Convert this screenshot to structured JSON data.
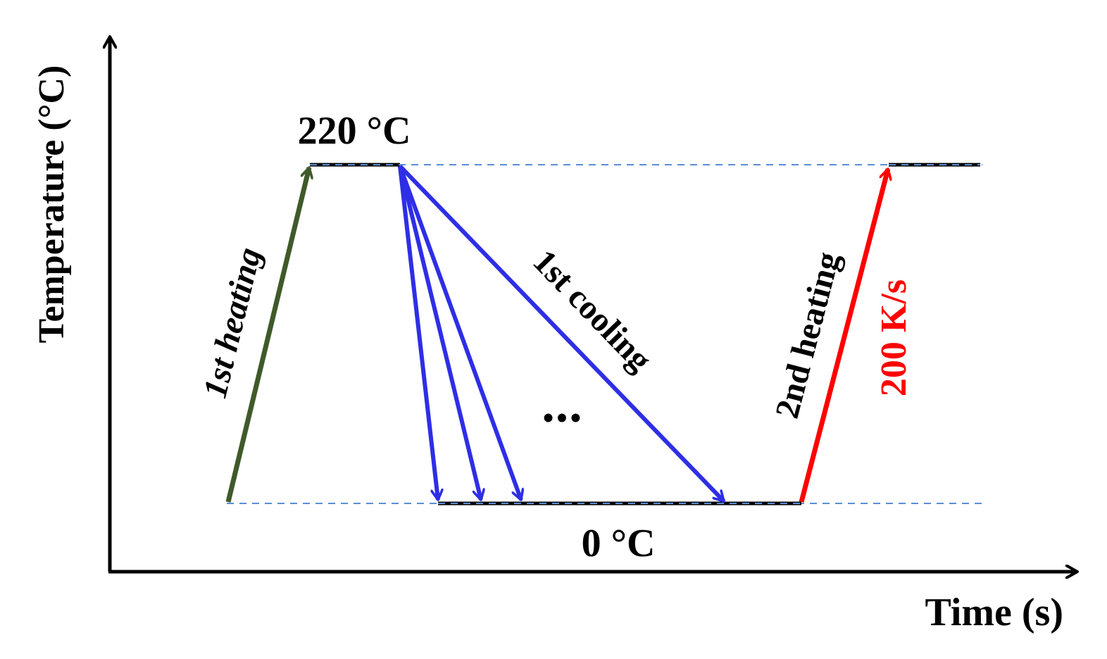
{
  "axes": {
    "y_label": "Temperature (°C)",
    "x_label": "Time (s)"
  },
  "levels": {
    "high": "220 °C",
    "low": "0 °C"
  },
  "segments": {
    "first_heating": "1st heating",
    "first_cooling": "1st cooling",
    "second_heating": "2nd heating",
    "rate": "200 K/s",
    "ellipsis": "•••"
  },
  "colors": {
    "heating_1": "#3f5a2a",
    "cooling": "#2e2ee6",
    "heating_2": "#ff0000",
    "guide": "#5b8ed6",
    "axis": "#000000"
  }
}
